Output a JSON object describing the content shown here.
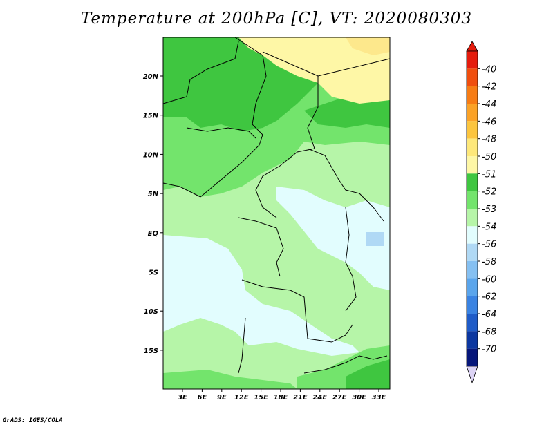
{
  "title": "Temperature at 200hPa [C], VT: 2020080303",
  "credit": "GrADS: IGES/COLA",
  "map": {
    "lat_labels": [
      "20N",
      "15N",
      "10N",
      "5N",
      "EQ",
      "5S",
      "10S",
      "15S"
    ],
    "lon_labels": [
      "3E",
      "6E",
      "9E",
      "12E",
      "15E",
      "18E",
      "21E",
      "24E",
      "27E",
      "30E",
      "33E"
    ],
    "fields": {
      "c51": "#3fc640",
      "c52": "#73e46c",
      "c53": "#b6f5a8",
      "c54": "#e2fdfe",
      "c56": "#b0d9f5",
      "c50": "#fef7a6",
      "c49": "#fde88c"
    }
  },
  "colorbar": {
    "labels": [
      "-40",
      "-42",
      "-44",
      "-46",
      "-48",
      "-50",
      "-51",
      "-52",
      "-53",
      "-54",
      "-56",
      "-58",
      "-60",
      "-62",
      "-64",
      "-68",
      "-70"
    ],
    "colors": [
      "#e51c0d",
      "#f04e0e",
      "#f77c14",
      "#fba226",
      "#fcc53e",
      "#fee87a",
      "#fef7a6",
      "#3fc640",
      "#73e46c",
      "#b6f5a8",
      "#e2fdfe",
      "#b0d9f5",
      "#85c0f2",
      "#5aa5ec",
      "#3a83e2",
      "#1f5cc8",
      "#0c37a0",
      "#06167a"
    ],
    "tip_bottom_color": "#dcd3f5"
  }
}
